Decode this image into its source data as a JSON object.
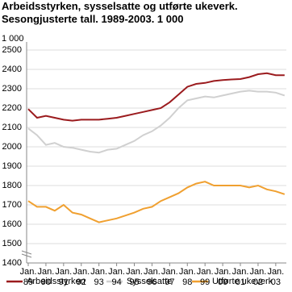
{
  "chart_data": {
    "type": "line",
    "title": "Arbeidsstyrken, sysselsatte og utførte ukeverk. Sesongjusterte tall. 1989-2003. 1 000",
    "unit": "1 000",
    "x": [
      1989,
      1989.5,
      1990,
      1990.5,
      1991,
      1991.5,
      1992,
      1992.5,
      1993,
      1993.5,
      1994,
      1994.5,
      1995,
      1995.5,
      1996,
      1996.5,
      1997,
      1997.5,
      1998,
      1998.5,
      1999,
      1999.5,
      2000,
      2000.5,
      2001,
      2001.5,
      2002,
      2002.5,
      2003,
      2003.5
    ],
    "series": [
      {
        "name": "Arbeidsstyrken",
        "color": "#9b1b1e",
        "values": [
          2195,
          2150,
          2160,
          2150,
          2140,
          2135,
          2140,
          2140,
          2140,
          2145,
          2150,
          2160,
          2170,
          2180,
          2190,
          2200,
          2230,
          2270,
          2310,
          2325,
          2330,
          2340,
          2345,
          2348,
          2350,
          2360,
          2375,
          2380,
          2370,
          2370
        ]
      },
      {
        "name": "Sysselsatte",
        "color": "#d0d0d0",
        "values": [
          2095,
          2060,
          2010,
          2020,
          2000,
          1995,
          1985,
          1975,
          1970,
          1985,
          1990,
          2010,
          2030,
          2060,
          2080,
          2110,
          2150,
          2200,
          2240,
          2250,
          2260,
          2255,
          2265,
          2275,
          2285,
          2290,
          2285,
          2285,
          2280,
          2265
        ]
      },
      {
        "name": "Utførte ukeverk",
        "color": "#f0a030",
        "values": [
          1720,
          1690,
          1690,
          1670,
          1700,
          1660,
          1650,
          1630,
          1610,
          1620,
          1630,
          1645,
          1660,
          1680,
          1690,
          1720,
          1740,
          1760,
          1790,
          1810,
          1820,
          1800,
          1800,
          1800,
          1800,
          1790,
          1800,
          1780,
          1770,
          1755
        ]
      }
    ],
    "xlim": [
      1989,
      2003.6
    ],
    "xticks": [
      {
        "value": 1989,
        "label": "Jan. 89"
      },
      {
        "value": 1990,
        "label": "Jan. 90"
      },
      {
        "value": 1991,
        "label": "Jan. 91"
      },
      {
        "value": 1992,
        "label": "Jan. 92"
      },
      {
        "value": 1993,
        "label": "Jan. 93"
      },
      {
        "value": 1994,
        "label": "Jan. 94"
      },
      {
        "value": 1995,
        "label": "Jan. 95"
      },
      {
        "value": 1996,
        "label": "Jan. 96"
      },
      {
        "value": 1997,
        "label": "Jan. 97"
      },
      {
        "value": 1998,
        "label": "Jan. 98"
      },
      {
        "value": 1999,
        "label": "Jan. 99"
      },
      {
        "value": 2000,
        "label": "Jan. 00"
      },
      {
        "value": 2001,
        "label": "Jan. 01"
      },
      {
        "value": 2002,
        "label": "Jan. 02"
      },
      {
        "value": 2003,
        "label": "Jan. 03"
      }
    ],
    "ylim": [
      1400,
      2500
    ],
    "yticks": [
      1400,
      1500,
      1600,
      1700,
      1800,
      1900,
      2000,
      2100,
      2200,
      2300,
      2400,
      2500
    ],
    "grid": true
  }
}
